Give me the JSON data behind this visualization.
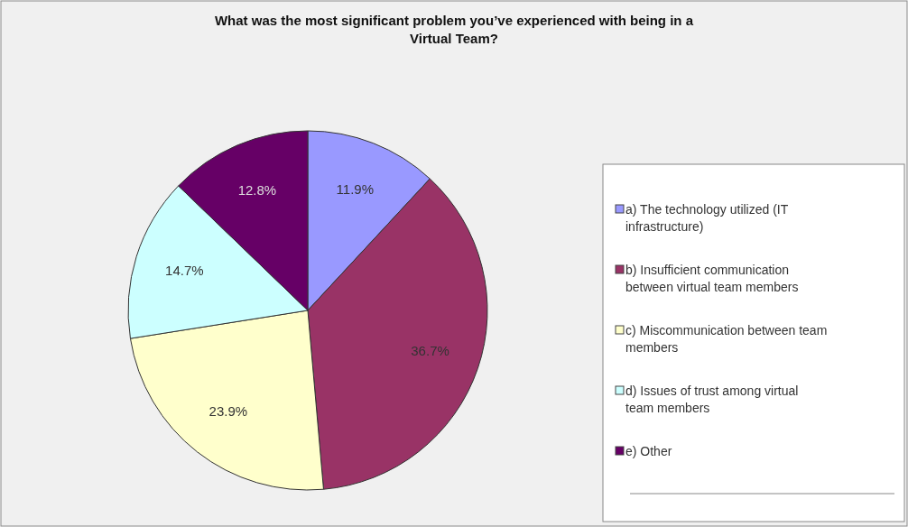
{
  "chart_data": {
    "type": "pie",
    "title": "What was the most significant problem you’ve experienced with being in a Virtual Team?",
    "categories": [
      "a) The technology utilized (IT infrastructure)",
      "b) Insufficient communication between virtual team members",
      "c) Miscommunication between team members",
      "d) Issues of trust among virtual team members",
      "e) Other"
    ],
    "values": [
      11.9,
      36.7,
      23.9,
      14.7,
      12.8
    ],
    "value_labels": [
      "11.9%",
      "36.7%",
      "23.9%",
      "14.7%",
      "12.8%"
    ],
    "colors": [
      "#9999ff",
      "#993366",
      "#ffffcc",
      "#ccffff",
      "#660066"
    ],
    "legend": "right"
  }
}
